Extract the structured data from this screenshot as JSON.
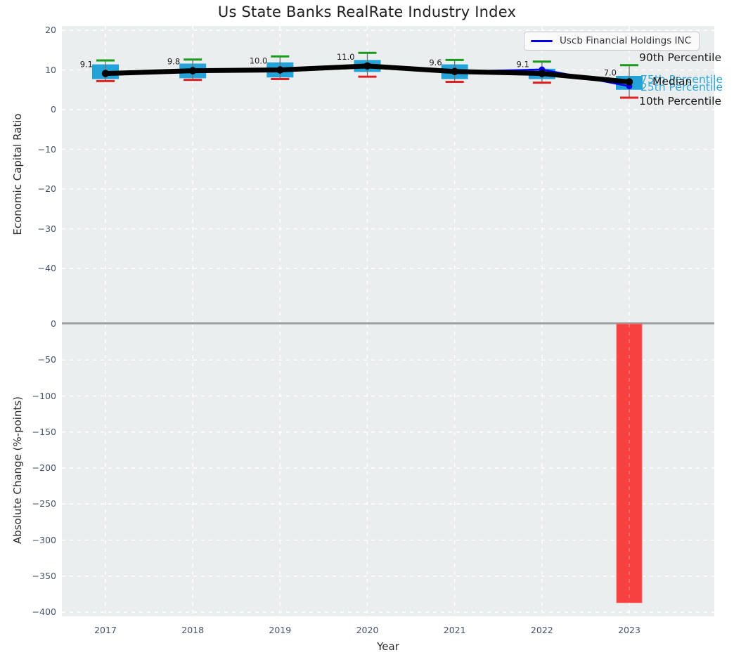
{
  "title": "Us State Banks RealRate Industry Index",
  "xlabel": "Year",
  "ylabel_top": "Economic Capital Ratio",
  "ylabel_bottom": "Absolute Change (%-points)",
  "legend": {
    "label": "Uscb Financial Holdings INC"
  },
  "right_labels": {
    "p90": "90th Percentile",
    "p75": "75th Percentile",
    "median": "Median",
    "p25": "25th Percentile",
    "p10": "10th Percentile"
  },
  "colors": {
    "panel_bg": "#ebeeee",
    "grid": "#ffffff",
    "box_fill": "#24a3d8",
    "whisker": "#6e6e6e",
    "cap_high": "#1b9a1b",
    "cap_low": "#e02020",
    "median_line": "#000000",
    "company_line": "#0000e6",
    "bar": "#f74040",
    "bar_edge": "#fb6a6a",
    "zero_line": "#8f9494",
    "tick_text": "#44536a",
    "annotation_text": "#1a1a1a",
    "percentile_text_blue": "#2fa9dc"
  },
  "chart_data": [
    {
      "type": "boxplot",
      "panel": "top",
      "title": "Us State Banks RealRate Industry Index",
      "ylabel": "Economic Capital Ratio",
      "yticks": [
        20,
        10,
        0,
        -10,
        -20,
        -30,
        -40
      ],
      "ylim": [
        -54,
        21
      ],
      "grid": true,
      "legend_position": "upper right",
      "categories": [
        2017,
        2018,
        2019,
        2020,
        2021,
        2022,
        2023
      ],
      "boxes": [
        {
          "year": 2017,
          "p10": 7.2,
          "p25": 7.7,
          "median": 9.1,
          "p75": 11.4,
          "p90": 12.4
        },
        {
          "year": 2018,
          "p10": 7.5,
          "p25": 7.9,
          "median": 9.8,
          "p75": 11.6,
          "p90": 12.6
        },
        {
          "year": 2019,
          "p10": 7.7,
          "p25": 8.1,
          "median": 10.0,
          "p75": 11.9,
          "p90": 13.4
        },
        {
          "year": 2020,
          "p10": 8.3,
          "p25": 9.5,
          "median": 11.0,
          "p75": 12.5,
          "p90": 14.3
        },
        {
          "year": 2021,
          "p10": 7.0,
          "p25": 7.7,
          "median": 9.6,
          "p75": 11.4,
          "p90": 12.5
        },
        {
          "year": 2022,
          "p10": 6.8,
          "p25": 7.7,
          "median": 9.1,
          "p75": 10.3,
          "p90": 12.1
        },
        {
          "year": 2023,
          "p10": 3.0,
          "p25": 5.0,
          "median": 7.0,
          "p75": 8.5,
          "p90": 11.2
        }
      ],
      "median_labels": [
        "9.1",
        "9.8",
        "10.0",
        "11.0",
        "9.6",
        "9.1",
        "7.0"
      ],
      "median_line_values": [
        9.1,
        9.8,
        10.0,
        11.0,
        9.6,
        9.1,
        7.0
      ],
      "series": [
        {
          "name": "Uscb Financial Holdings INC",
          "values": [
            9.1,
            9.8,
            10.0,
            11.0,
            9.6,
            10.1,
            5.9
          ],
          "color": "#0000e6"
        }
      ]
    },
    {
      "type": "bar",
      "panel": "bottom",
      "ylabel": "Absolute Change (%-points)",
      "xlabel": "Year",
      "yticks": [
        0,
        -50,
        -100,
        -150,
        -200,
        -250,
        -300,
        -350,
        -400
      ],
      "ylim": [
        -406,
        2
      ],
      "grid": true,
      "zero_line": true,
      "categories": [
        2017,
        2018,
        2019,
        2020,
        2021,
        2022,
        2023
      ],
      "values": [
        null,
        null,
        null,
        null,
        null,
        null,
        -387
      ],
      "bar_color": "#f74040"
    }
  ]
}
